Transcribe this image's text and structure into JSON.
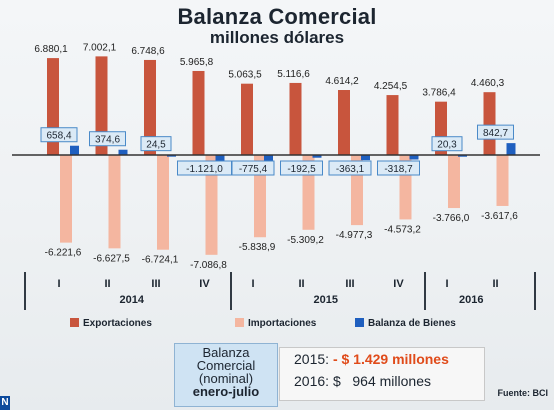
{
  "title": "Balanza Comercial",
  "subtitle": "millones dólares",
  "chart_data": {
    "type": "bar",
    "categories": [
      "I",
      "II",
      "III",
      "IV",
      "I",
      "II",
      "III",
      "IV",
      "I",
      "II"
    ],
    "years": [
      {
        "label": "2014",
        "start": 0,
        "end": 3
      },
      {
        "label": "2015",
        "start": 4,
        "end": 7
      },
      {
        "label": "2016",
        "start": 8,
        "end": 9
      }
    ],
    "series": [
      {
        "name": "Exportaciones",
        "color": "#c8553d",
        "values": [
          6880.1,
          7002.1,
          6748.6,
          5965.8,
          5063.5,
          5116.6,
          4614.2,
          4254.5,
          3786.4,
          4460.3
        ],
        "labels": [
          "6.880,1",
          "7.002,1",
          "6.748,6",
          "5.965,8",
          "5.063,5",
          "5.116,6",
          "4.614,2",
          "4.254,5",
          "3.786,4",
          "4.460,3"
        ]
      },
      {
        "name": "Importaciones",
        "color": "#f4b6a0",
        "values": [
          -6221.6,
          -6627.5,
          -6724.1,
          -7086.8,
          -5838.9,
          -5309.2,
          -4977.3,
          -4573.2,
          -3766.0,
          -3617.6
        ],
        "labels": [
          "-6.221,6",
          "-6.627,5",
          "-6.724,1",
          "-7.086,8",
          "-5.838,9",
          "-5.309,2",
          "-4.977,3",
          "-4.573,2",
          "-3.766,0",
          "-3.617,6"
        ]
      },
      {
        "name": "Balanza de Bienes",
        "color": "#1f5fbf",
        "values": [
          658.4,
          374.6,
          24.5,
          -1121.0,
          -775.4,
          -192.5,
          -363.1,
          -318.7,
          20.3,
          842.7
        ],
        "labels": [
          "658,4",
          "374,6",
          "24,5",
          "-1.121,0",
          "-775,4",
          "-192,5",
          "-363,1",
          "-318,7",
          "20,3",
          "842,7"
        ]
      }
    ],
    "ylim": [
      -7100,
      7100
    ],
    "legend_position": "bottom"
  },
  "info_box": {
    "line1": "Balanza",
    "line2": "Comercial",
    "line3": "(nominal)",
    "line4": "enero-julio"
  },
  "summary": {
    "row1_year": "2015:",
    "row1_value": "- $ 1.429 millones",
    "row2_year": "2016:",
    "row2_value": "$   964 millones"
  },
  "source": "Fuente: BCI",
  "logo": "N"
}
